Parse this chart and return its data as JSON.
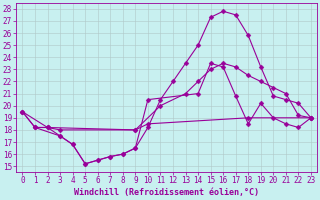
{
  "xlabel": "Windchill (Refroidissement éolien,°C)",
  "bg_color": "#c8f0f0",
  "line_color": "#990099",
  "xlim": [
    -0.5,
    23.5
  ],
  "ylim": [
    14.5,
    28.5
  ],
  "xticks": [
    0,
    1,
    2,
    3,
    4,
    5,
    6,
    7,
    8,
    9,
    10,
    11,
    12,
    13,
    14,
    15,
    16,
    17,
    18,
    19,
    20,
    21,
    22,
    23
  ],
  "yticks": [
    15,
    16,
    17,
    18,
    19,
    20,
    21,
    22,
    23,
    24,
    25,
    26,
    27,
    28
  ],
  "line1_x": [
    0,
    1,
    2,
    3,
    9,
    10,
    18,
    23
  ],
  "line1_y": [
    19.5,
    18.2,
    18.2,
    18.0,
    18.0,
    18.5,
    19.0,
    19.0
  ],
  "line2_x": [
    0,
    1,
    2,
    3,
    4,
    5,
    6,
    7,
    8,
    9,
    10,
    11,
    12,
    13,
    14,
    15,
    16,
    17,
    18,
    19,
    20,
    21,
    22,
    23
  ],
  "line2_y": [
    19.5,
    18.2,
    18.2,
    17.5,
    16.8,
    15.2,
    15.5,
    15.8,
    16.0,
    16.5,
    18.2,
    20.5,
    22.0,
    23.5,
    25.0,
    27.3,
    27.8,
    27.5,
    25.8,
    23.2,
    20.8,
    20.5,
    20.2,
    19.0
  ],
  "line3_x": [
    1,
    3,
    4,
    5,
    6,
    7,
    8,
    9,
    10,
    14,
    15,
    16,
    17,
    18,
    19,
    20,
    21,
    22,
    23
  ],
  "line3_y": [
    18.2,
    17.5,
    16.8,
    15.2,
    15.5,
    15.8,
    16.0,
    16.5,
    20.5,
    21.0,
    23.5,
    23.2,
    20.8,
    18.5,
    20.2,
    19.0,
    18.5,
    18.2,
    19.0
  ],
  "line4_x": [
    0,
    2,
    9,
    11,
    13,
    14,
    15,
    16,
    17,
    18,
    19,
    20,
    21,
    22,
    23
  ],
  "line4_y": [
    19.5,
    18.2,
    18.0,
    20.0,
    21.0,
    22.0,
    23.0,
    23.5,
    23.2,
    22.5,
    22.0,
    21.5,
    21.0,
    19.2,
    19.0
  ],
  "grid_color": "#b0c8c8",
  "font_size": 5.5,
  "marker": "D",
  "marker_size": 2.5
}
